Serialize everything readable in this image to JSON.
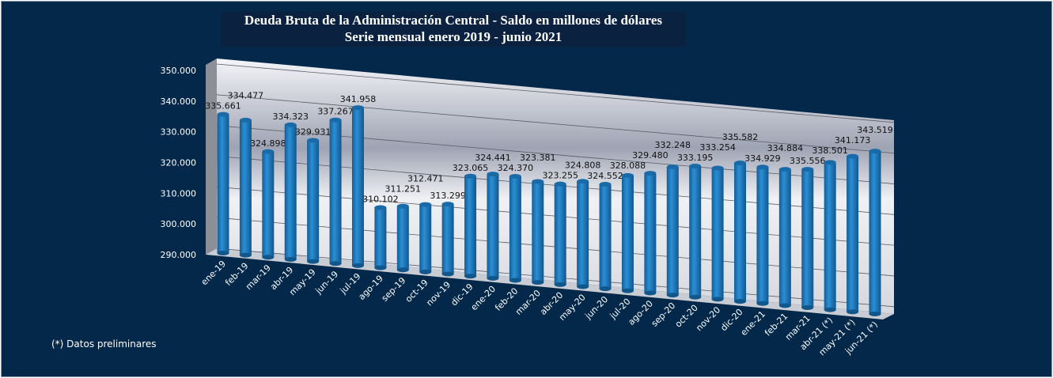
{
  "chart_data": {
    "type": "bar",
    "title": "Deuda Bruta de la Administración Central - Saldo en millones de dólares",
    "subtitle": "Serie mensual enero 2019 - junio 2021",
    "xlabel": "",
    "ylabel": "",
    "ylim": [
      290000,
      350000
    ],
    "yticks": [
      "290.000",
      "300.000",
      "310.000",
      "320.000",
      "330.000",
      "340.000",
      "350.000"
    ],
    "grid": true,
    "bar_color": "#1f7fc4",
    "categories": [
      "ene-19",
      "feb-19",
      "mar-19",
      "abr-19",
      "may-19",
      "jun-19",
      "jul-19",
      "ago-19",
      "sep-19",
      "oct-19",
      "nov-19",
      "dic-19",
      "ene-20",
      "feb-20",
      "mar-20",
      "abr-20",
      "may-20",
      "jun-20",
      "jul-20",
      "ago-20",
      "sep-20",
      "oct-20",
      "nov-20",
      "dic-20",
      "ene-21",
      "feb-21",
      "mar-21",
      "abr-21 (*)",
      "may-21 (*)",
      "jun-21 (*)"
    ],
    "values": [
      335661,
      334477,
      324898,
      334323,
      329931,
      337267,
      341958,
      310102,
      311251,
      312471,
      313299,
      323065,
      324441,
      324370,
      323381,
      323255,
      324808,
      324552,
      328088,
      329480,
      332248,
      333195,
      333254,
      335582,
      334929,
      334884,
      335556,
      338501,
      341173,
      343519
    ],
    "data_labels": [
      "335.661",
      "334.477",
      "324.898",
      "334.323",
      "329.931",
      "337.267",
      "341.958",
      "310.102",
      "311.251",
      "312.471",
      "313.299",
      "323.065",
      "324.441",
      "324.370",
      "323.381",
      "323.255",
      "324.808",
      "324.552",
      "328.088",
      "329.480",
      "332.248",
      "333.195",
      "333.254",
      "335.582",
      "334.929",
      "334.884",
      "335.556",
      "338.501",
      "341.173",
      "343.519"
    ]
  },
  "footnote": "(*) Datos preliminares"
}
